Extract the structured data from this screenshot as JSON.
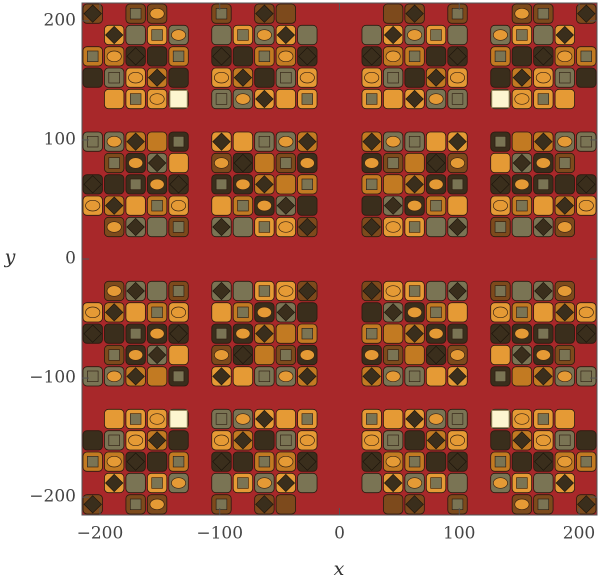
{
  "chart_data": {
    "type": "contour",
    "xlabel": "x",
    "ylabel": "y",
    "xlim": [
      -215,
      215
    ],
    "ylim": [
      -215,
      215
    ],
    "xticks": [
      {
        "value": -200,
        "label": "−200"
      },
      {
        "value": -100,
        "label": "−100"
      },
      0,
      100,
      200
    ],
    "yticks": [
      {
        "value": -200,
        "label": "−200"
      },
      {
        "value": -100,
        "label": "−100"
      },
      0,
      100,
      200
    ],
    "colors": [
      "#a8282a",
      "#7d4a1c",
      "#c27a22",
      "#e59a35",
      "#7a7454",
      "#3a2e1c",
      "#fdf6d0"
    ]
  }
}
